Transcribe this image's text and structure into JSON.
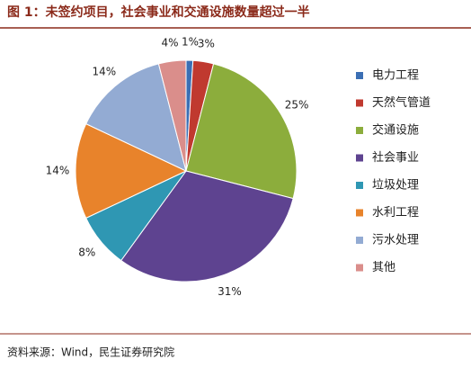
{
  "chart_data": {
    "type": "pie",
    "title": "图 1：未签约项目，社会事业和交通设施数量超过一半",
    "categories": [
      "电力工程",
      "天然气管道",
      "交通设施",
      "社会事业",
      "垃圾处理",
      "水利工程",
      "污水处理",
      "其他"
    ],
    "values": [
      1,
      3,
      25,
      31,
      8,
      14,
      14,
      4
    ],
    "value_labels": [
      "1%",
      "3%",
      "25%",
      "31%",
      "8%",
      "14%",
      "14%",
      "4%"
    ],
    "colors": [
      "#3b6fb4",
      "#c0392f",
      "#8cad3c",
      "#5e4390",
      "#2f97b3",
      "#e8832b",
      "#93abd3",
      "#da8e8b"
    ],
    "legend": "right",
    "source": "资料来源：Wind，民生证券研究院"
  }
}
